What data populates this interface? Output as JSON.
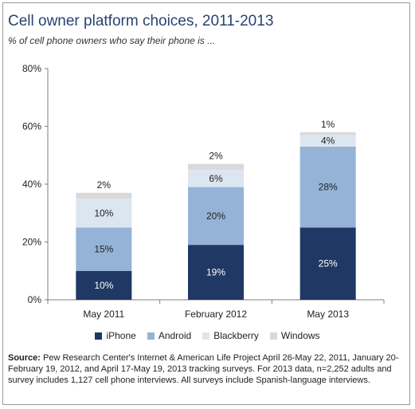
{
  "title": "Cell owner platform choices, 2011-2013",
  "subtitle": "% of cell phone owners who say their phone is ...",
  "source_label": "Source:",
  "source_text": "Pew Research Center's Internet & American Life Project April 26-May 22, 2011, January 20-February 19, 2012, and April 17-May 19, 2013 tracking surveys. For 2013 data, n=2,252 adults and survey includes 1,127 cell phone interviews. All surveys include Spanish-language interviews.",
  "chart_data": {
    "type": "bar",
    "stacked": true,
    "categories": [
      "May 2011",
      "February 2012",
      "May 2013"
    ],
    "series": [
      {
        "name": "iPhone",
        "values": [
          10,
          19,
          25
        ],
        "labels": [
          "10%",
          "19%",
          "25%"
        ],
        "color": "#1f3864",
        "label_color": "#ffffff"
      },
      {
        "name": "Android",
        "values": [
          15,
          20,
          28
        ],
        "labels": [
          "15%",
          "20%",
          "28%"
        ],
        "color": "#95b3d7",
        "label_color": "#222222"
      },
      {
        "name": "Blackberry",
        "values": [
          10,
          6,
          4
        ],
        "labels": [
          "10%",
          "6%",
          "4%"
        ],
        "color": "#dce6f1",
        "label_color": "#222222"
      },
      {
        "name": "Windows",
        "values": [
          2,
          2,
          1
        ],
        "labels": [
          "2%",
          "2%",
          "1%"
        ],
        "color": "#d9d9d9",
        "label_color": "#222222"
      }
    ],
    "yticks": [
      "0%",
      "20%",
      "40%",
      "60%",
      "80%"
    ],
    "ylim": [
      0,
      80
    ],
    "grid": false,
    "legend_position": "bottom"
  }
}
